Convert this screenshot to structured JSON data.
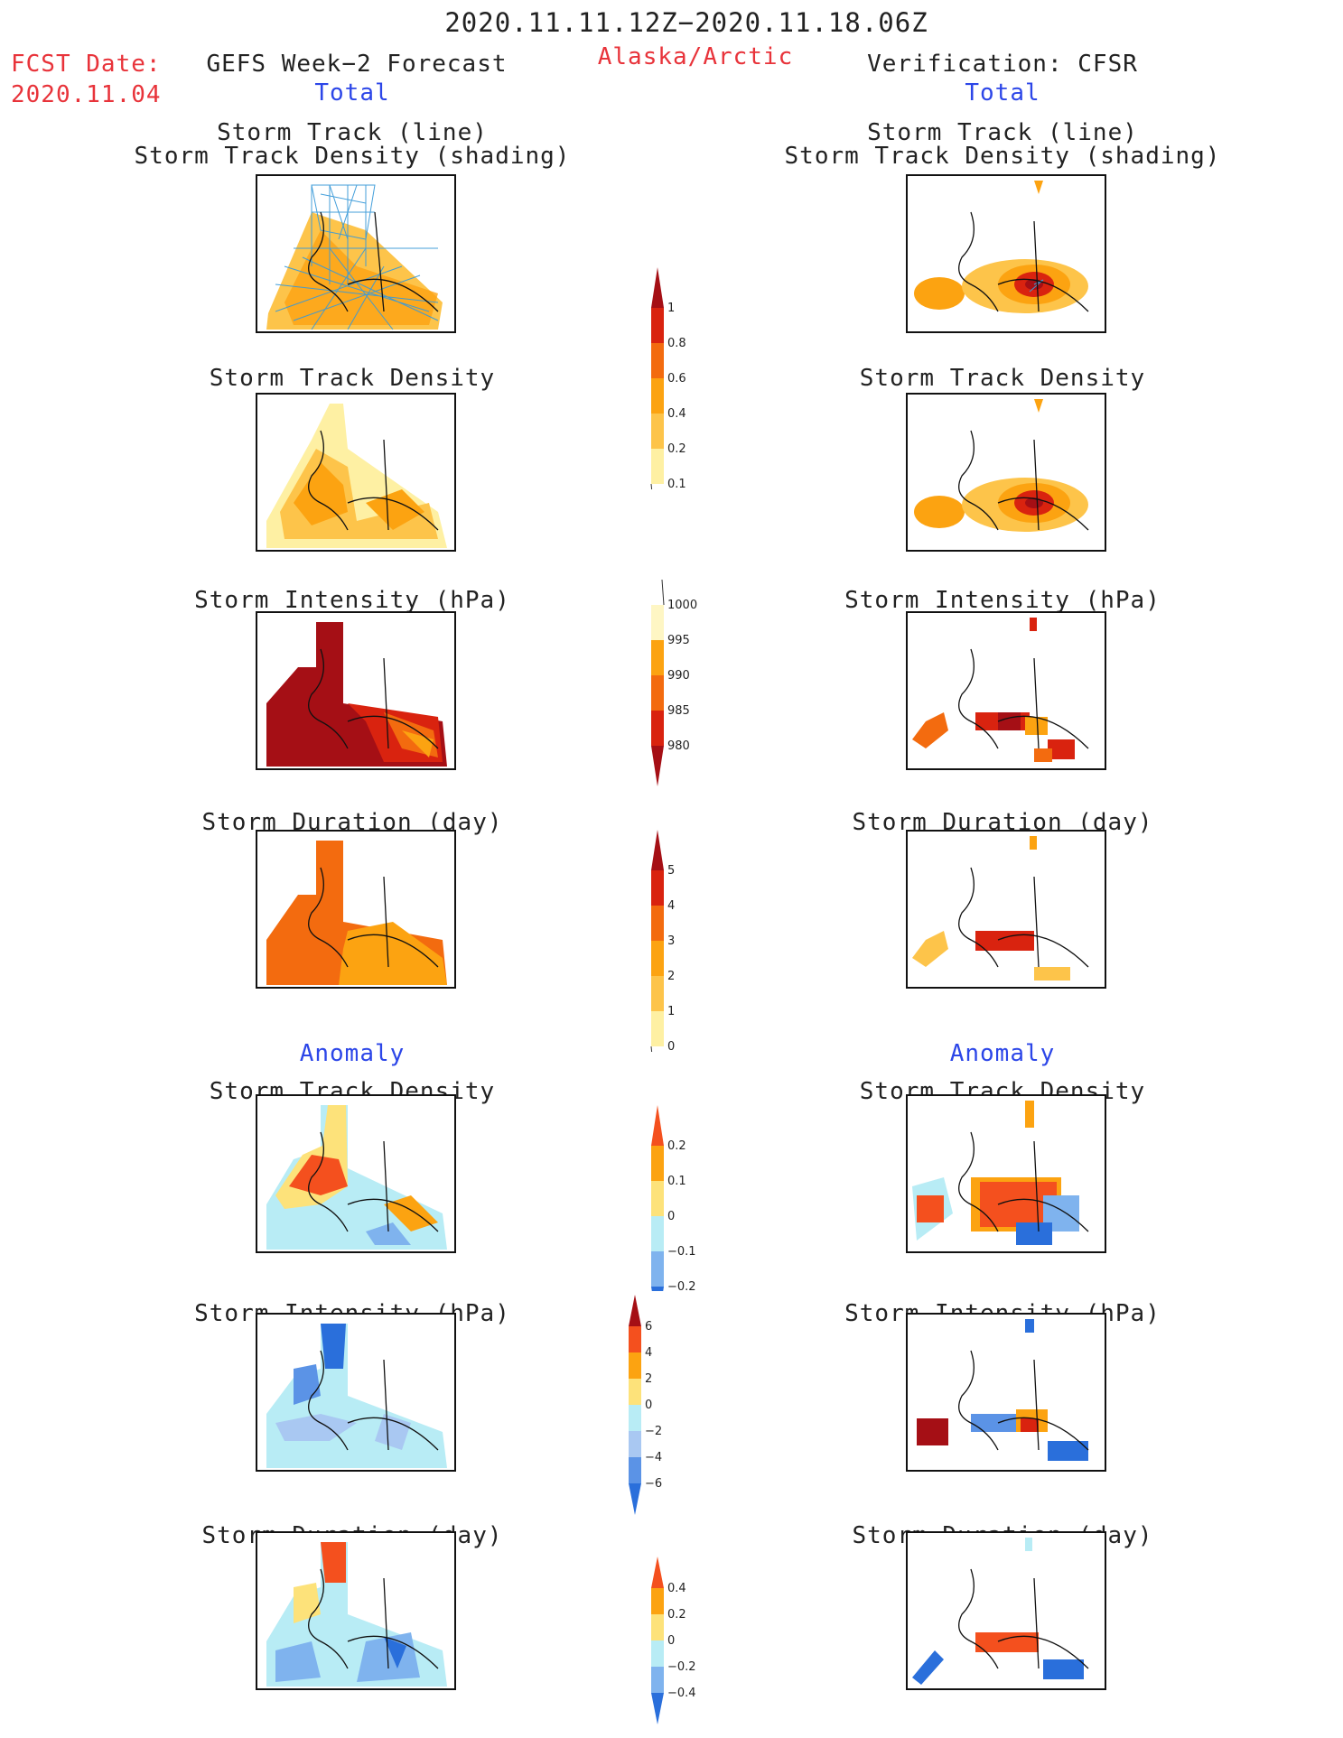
{
  "header": {
    "period": "2020.11.11.12Z−2020.11.18.06Z",
    "fcst_label": "FCST Date:",
    "fcst_date": "2020.11.04",
    "region": "Alaska/Arctic",
    "left_title": "GEFS Week−2 Forecast",
    "right_title": "Verification: CFSR",
    "total_label": "Total",
    "anomaly_label": "Anomaly"
  },
  "panel_titles": {
    "track_line": "Storm Track (line)",
    "track_density_shading": "Storm Track Density (shading)",
    "track_density": "Storm Track Density",
    "intensity": "Storm Intensity (hPa)",
    "duration": "Storm Duration (day)"
  },
  "colorbars": {
    "density_total": {
      "ticks": [
        "1",
        "0.8",
        "0.6",
        "0.4",
        "0.2",
        "0.1"
      ],
      "colors": [
        "#a50f15",
        "#d9230f",
        "#f36b0f",
        "#fca311",
        "#fdc44a",
        "#fef0a3"
      ]
    },
    "intensity_total": {
      "ticks": [
        "1000",
        "995",
        "990",
        "985",
        "980"
      ],
      "colors": [
        "#fef6c4",
        "#fca311",
        "#f36b0f",
        "#d9230f",
        "#a50f15"
      ]
    },
    "duration_total": {
      "ticks": [
        "5",
        "4",
        "3",
        "2",
        "1",
        "0"
      ],
      "colors": [
        "#a50f15",
        "#d9230f",
        "#f36b0f",
        "#fca311",
        "#fdc44a",
        "#fef0a3"
      ]
    },
    "density_anom": {
      "ticks": [
        "0.2",
        "0.1",
        "0",
        "−0.1",
        "−0.2"
      ],
      "colors": [
        "#f4501e",
        "#fca311",
        "#fde27a",
        "#b8ecf5",
        "#7fb3ee",
        "#2a6fdb"
      ]
    },
    "intensity_anom": {
      "ticks": [
        "6",
        "4",
        "2",
        "0",
        "−2",
        "−4",
        "−6"
      ],
      "colors": [
        "#a50f15",
        "#f4501e",
        "#fca311",
        "#fde27a",
        "#b8ecf5",
        "#a9c8f2",
        "#5b93e6",
        "#2a6fdb"
      ]
    },
    "duration_anom": {
      "ticks": [
        "0.4",
        "0.2",
        "0",
        "−0.2",
        "−0.4"
      ],
      "colors": [
        "#f4501e",
        "#fca311",
        "#fde27a",
        "#b8ecf5",
        "#7fb3ee",
        "#2a6fdb"
      ]
    }
  }
}
